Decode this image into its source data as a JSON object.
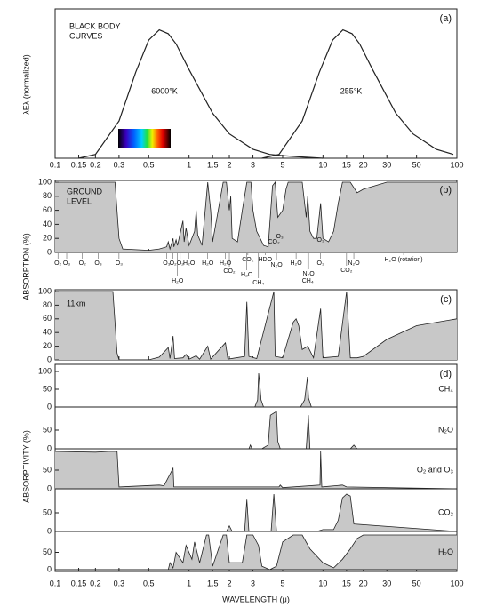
{
  "chart_data": [
    {
      "type": "line",
      "panel_label": "(a)",
      "title_lines": [
        "BLACK BODY",
        "CURVES"
      ],
      "ylabel": "λEλ (normalized)",
      "xlim": [
        0.1,
        100
      ],
      "ylim": [
        0,
        1.08
      ],
      "xticks": [
        0.1,
        0.15,
        0.2,
        0.3,
        0.5,
        1,
        1.5,
        2,
        3,
        5,
        10,
        15,
        20,
        30,
        50,
        100
      ],
      "series": [
        {
          "name": "6000°K",
          "color": "#222222",
          "x": [
            0.15,
            0.2,
            0.3,
            0.4,
            0.5,
            0.6,
            0.7,
            0.8,
            1,
            1.5,
            2,
            3,
            4,
            5,
            7,
            10
          ],
          "values": [
            0,
            0.03,
            0.29,
            0.67,
            0.92,
            1,
            0.97,
            0.89,
            0.69,
            0.35,
            0.19,
            0.07,
            0.03,
            0.02,
            0.01,
            0
          ]
        },
        {
          "name": "255°K",
          "color": "#222222",
          "x": [
            3.5,
            4.7,
            7,
            9.4,
            11.8,
            14.1,
            16.5,
            18.8,
            23.5,
            35,
            47,
            70,
            94
          ],
          "values": [
            0,
            0.03,
            0.29,
            0.67,
            0.92,
            1,
            0.97,
            0.89,
            0.69,
            0.35,
            0.19,
            0.07,
            0.03
          ]
        }
      ]
    },
    {
      "type": "area",
      "panel_label": "(b)",
      "title_lines": [
        "GROUND",
        "LEVEL"
      ],
      "ylabel": "ABSORPTION (%)",
      "xlim": [
        0.1,
        100
      ],
      "ylim": [
        0,
        100
      ],
      "yticks": [
        0,
        20,
        40,
        60,
        80,
        100
      ],
      "series": [
        {
          "color": "#c8c8c8",
          "x": [
            0.1,
            0.28,
            0.3,
            0.32,
            0.5,
            0.6,
            0.68,
            0.7,
            0.72,
            0.76,
            0.77,
            0.8,
            0.82,
            0.9,
            0.92,
            0.95,
            1.0,
            1.1,
            1.13,
            1.16,
            1.25,
            1.38,
            1.45,
            1.5,
            1.8,
            1.9,
            2.0,
            2.05,
            2.1,
            2.3,
            2.5,
            2.7,
            2.9,
            3.0,
            3.2,
            3.4,
            3.6,
            3.9,
            4.2,
            4.4,
            4.6,
            5.0,
            5.3,
            5.5,
            7.0,
            7.5,
            7.7,
            8,
            8.5,
            9,
            9.6,
            10,
            11,
            12,
            13,
            14,
            16,
            18,
            20,
            30,
            100
          ],
          "values": [
            100,
            100,
            20,
            5,
            3,
            5,
            8,
            15,
            5,
            20,
            8,
            18,
            10,
            45,
            15,
            35,
            10,
            30,
            60,
            25,
            10,
            100,
            60,
            15,
            100,
            100,
            60,
            80,
            20,
            15,
            60,
            100,
            100,
            60,
            30,
            20,
            10,
            8,
            95,
            100,
            50,
            60,
            90,
            100,
            100,
            50,
            80,
            30,
            20,
            20,
            70,
            20,
            15,
            30,
            70,
            100,
            100,
            85,
            90,
            100,
            100
          ]
        }
      ],
      "annotations": [
        {
          "text": "O₂",
          "x": 0.105
        },
        {
          "text": "O₃",
          "x": 0.122
        },
        {
          "text": "O₂",
          "x": 0.16
        },
        {
          "text": "O₃",
          "x": 0.21
        },
        {
          "text": "O₃",
          "x": 0.3
        },
        {
          "text": "O₃",
          "x": 0.68
        },
        {
          "text": "O₂",
          "x": 0.76
        },
        {
          "text": "O₂",
          "x": 0.86
        },
        {
          "text": "H₂O",
          "x": 0.82
        },
        {
          "text": "H₂O",
          "x": 1.0
        },
        {
          "text": "H₂O",
          "x": 1.38
        },
        {
          "text": "H₂O",
          "x": 1.87
        },
        {
          "text": "CO₂",
          "x": 2.0
        },
        {
          "text": "H₂O",
          "x": 2.7
        },
        {
          "text": "CO₂",
          "x": 2.75
        },
        {
          "text": "CH₄",
          "x": 3.3
        },
        {
          "text": "HDO",
          "x": 3.7
        },
        {
          "text": "N₂O",
          "x": 4.5
        },
        {
          "text": "CO₂",
          "x": 4.3
        },
        {
          "text": "O₃",
          "x": 4.75
        },
        {
          "text": "H₂O",
          "x": 6.3
        },
        {
          "text": "O₃",
          "x": 9.6
        },
        {
          "text": "N₂O",
          "x": 7.8
        },
        {
          "text": "CH₄",
          "x": 7.7
        },
        {
          "text": "O₃",
          "x": 9.6
        },
        {
          "text": "CO₂",
          "x": 15
        },
        {
          "text": "N₂O",
          "x": 17
        },
        {
          "text": "H₂O (rotation)",
          "x": 40
        }
      ]
    },
    {
      "type": "area",
      "panel_label": "(c)",
      "title_lines": [
        "11km"
      ],
      "xlim": [
        0.1,
        100
      ],
      "ylim": [
        0,
        100
      ],
      "yticks": [
        0,
        20,
        40,
        60,
        80,
        100
      ],
      "series": [
        {
          "color": "#c8c8c8",
          "x": [
            0.1,
            0.27,
            0.29,
            0.3,
            0.5,
            0.6,
            0.7,
            0.72,
            0.76,
            0.78,
            0.9,
            0.95,
            1.0,
            1.13,
            1.2,
            1.38,
            1.45,
            1.87,
            1.95,
            2.6,
            2.7,
            2.8,
            3.2,
            4.3,
            4.4,
            5,
            6,
            6.3,
            6.6,
            7,
            7.7,
            8.5,
            9.6,
            10,
            13,
            15,
            16,
            18,
            20,
            30,
            50,
            100
          ],
          "values": [
            100,
            100,
            10,
            0,
            0,
            4,
            18,
            2,
            35,
            2,
            3,
            8,
            1,
            6,
            1,
            20,
            1,
            25,
            1,
            5,
            85,
            5,
            2,
            100,
            5,
            3,
            55,
            60,
            50,
            15,
            20,
            3,
            75,
            3,
            5,
            100,
            3,
            3,
            5,
            30,
            50,
            60
          ]
        }
      ]
    },
    {
      "type": "area",
      "panel_label": "(d)",
      "ylabel": "ABSORPTIVITY (%)",
      "name": "CH₄",
      "xlim": [
        0.1,
        100
      ],
      "ylim": [
        0,
        100
      ],
      "yticks": [
        0,
        50,
        100
      ],
      "series": [
        {
          "color": "#c8c8c8",
          "x": [
            0.1,
            3.1,
            3.25,
            3.31,
            3.38,
            3.45,
            3.6,
            6.8,
            7.3,
            7.66,
            7.8,
            8.2,
            100
          ],
          "values": [
            0,
            0,
            20,
            95,
            60,
            20,
            0,
            0,
            20,
            85,
            25,
            0,
            0
          ]
        }
      ]
    },
    {
      "type": "area",
      "name": "N₂O",
      "xlim": [
        0.1,
        100
      ],
      "ylim": [
        0,
        100
      ],
      "yticks": [
        0,
        50
      ],
      "series": [
        {
          "color": "#c8c8c8",
          "x": [
            0.1,
            2.8,
            2.87,
            2.95,
            3.5,
            3.9,
            4.05,
            4.5,
            4.6,
            4.8,
            7.5,
            7.78,
            8.0,
            16,
            17,
            18,
            100
          ],
          "values": [
            0,
            0,
            10,
            0,
            0,
            10,
            90,
            100,
            20,
            0,
            0,
            90,
            0,
            0,
            10,
            0,
            0
          ]
        }
      ]
    },
    {
      "type": "area",
      "name": "O₂ and O₃",
      "xlim": [
        0.1,
        100
      ],
      "ylim": [
        0,
        100
      ],
      "yticks": [
        0,
        50
      ],
      "series": [
        {
          "color": "#c8c8c8",
          "x": [
            0.1,
            0.2,
            0.25,
            0.29,
            0.3,
            0.6,
            0.65,
            0.76,
            0.77,
            4.7,
            4.8,
            5,
            9.5,
            9.6,
            9.8,
            14,
            15,
            100
          ],
          "values": [
            100,
            98,
            100,
            100,
            5,
            10,
            8,
            55,
            5,
            5,
            10,
            3,
            10,
            100,
            5,
            10,
            5,
            0
          ]
        }
      ]
    },
    {
      "type": "area",
      "name": "CO₂",
      "xlim": [
        0.1,
        100
      ],
      "ylim": [
        0,
        100
      ],
      "yticks": [
        0,
        50
      ],
      "series": [
        {
          "color": "#c8c8c8",
          "x": [
            0.1,
            1.9,
            2.0,
            2.1,
            2.6,
            2.7,
            2.8,
            4.1,
            4.3,
            4.5,
            9,
            10,
            12,
            13,
            14,
            15,
            16,
            17,
            100
          ],
          "values": [
            0,
            0,
            15,
            0,
            0,
            85,
            0,
            0,
            100,
            0,
            0,
            5,
            5,
            30,
            90,
            100,
            95,
            20,
            0
          ]
        }
      ]
    },
    {
      "type": "area",
      "name": "H₂O",
      "xlabel": "WAVELENGTH (μ)",
      "xlim": [
        0.1,
        100
      ],
      "ylim": [
        0,
        100
      ],
      "yticks": [
        0,
        50
      ],
      "xticks": [
        0.1,
        0.15,
        0.2,
        0.3,
        0.5,
        1,
        1.5,
        2,
        3,
        5,
        10,
        15,
        20,
        30,
        50,
        100
      ],
      "series": [
        {
          "color": "#c8c8c8",
          "x": [
            0.1,
            0.7,
            0.72,
            0.76,
            0.8,
            0.9,
            0.95,
            1.05,
            1.1,
            1.2,
            1.35,
            1.4,
            1.5,
            1.8,
            1.9,
            2.0,
            2.5,
            2.7,
            3.0,
            3.3,
            3.5,
            4,
            4.5,
            5,
            6,
            7,
            8,
            10,
            12,
            14,
            16,
            18,
            20,
            100
          ],
          "values": [
            0,
            0,
            20,
            5,
            50,
            20,
            70,
            30,
            80,
            20,
            100,
            100,
            10,
            100,
            100,
            20,
            20,
            100,
            100,
            70,
            10,
            0,
            10,
            80,
            100,
            100,
            60,
            20,
            5,
            30,
            60,
            90,
            100,
            100
          ]
        }
      ]
    }
  ]
}
